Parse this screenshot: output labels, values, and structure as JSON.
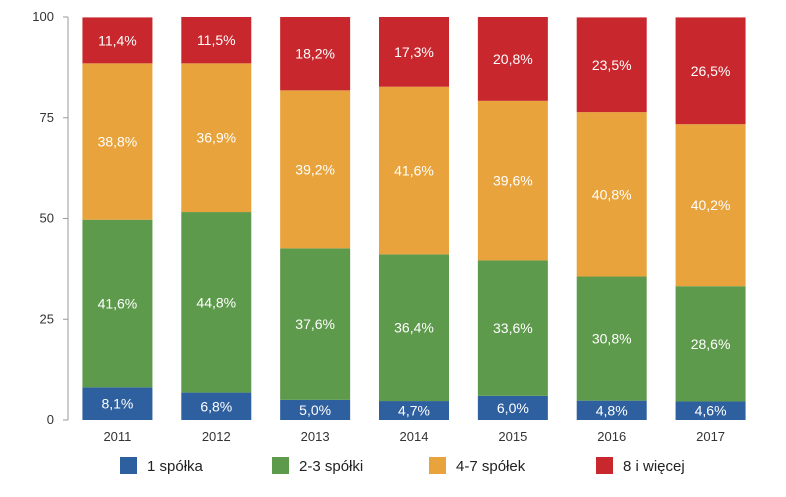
{
  "chart_data": {
    "type": "bar",
    "stacked": true,
    "categories": [
      "2011",
      "2012",
      "2013",
      "2014",
      "2015",
      "2016",
      "2017"
    ],
    "series": [
      {
        "name": "1 spółka",
        "color": "#2e5f9e",
        "values": [
          8.1,
          6.8,
          5.0,
          4.7,
          6.0,
          4.8,
          4.6
        ],
        "labels": [
          "8,1%",
          "6,8%",
          "5,0%",
          "4,7%",
          "6,0%",
          "4,8%",
          "4,6%"
        ]
      },
      {
        "name": "2-3 spółki",
        "color": "#5e9a4b",
        "values": [
          41.6,
          44.8,
          37.6,
          36.4,
          33.6,
          30.8,
          28.6
        ],
        "labels": [
          "41,6%",
          "44,8%",
          "37,6%",
          "36,4%",
          "33,6%",
          "30,8%",
          "28,6%"
        ]
      },
      {
        "name": "4-7 spółek",
        "color": "#e8a33c",
        "values": [
          38.8,
          36.9,
          39.2,
          41.6,
          39.6,
          40.8,
          40.2
        ],
        "labels": [
          "38,8%",
          "36,9%",
          "39,2%",
          "41,6%",
          "39,6%",
          "40,8%",
          "40,2%"
        ]
      },
      {
        "name": "8 i więcej",
        "color": "#c8282d",
        "values": [
          11.4,
          11.5,
          18.2,
          17.3,
          20.8,
          23.5,
          26.5
        ],
        "labels": [
          "11,4%",
          "11,5%",
          "18,2%",
          "17,3%",
          "20,8%",
          "23,5%",
          "26,5%"
        ]
      }
    ],
    "ylim": [
      0,
      100
    ],
    "yticks": [
      "0",
      "25",
      "50",
      "75",
      "100"
    ],
    "grid": false,
    "legend_position": "bottom"
  }
}
